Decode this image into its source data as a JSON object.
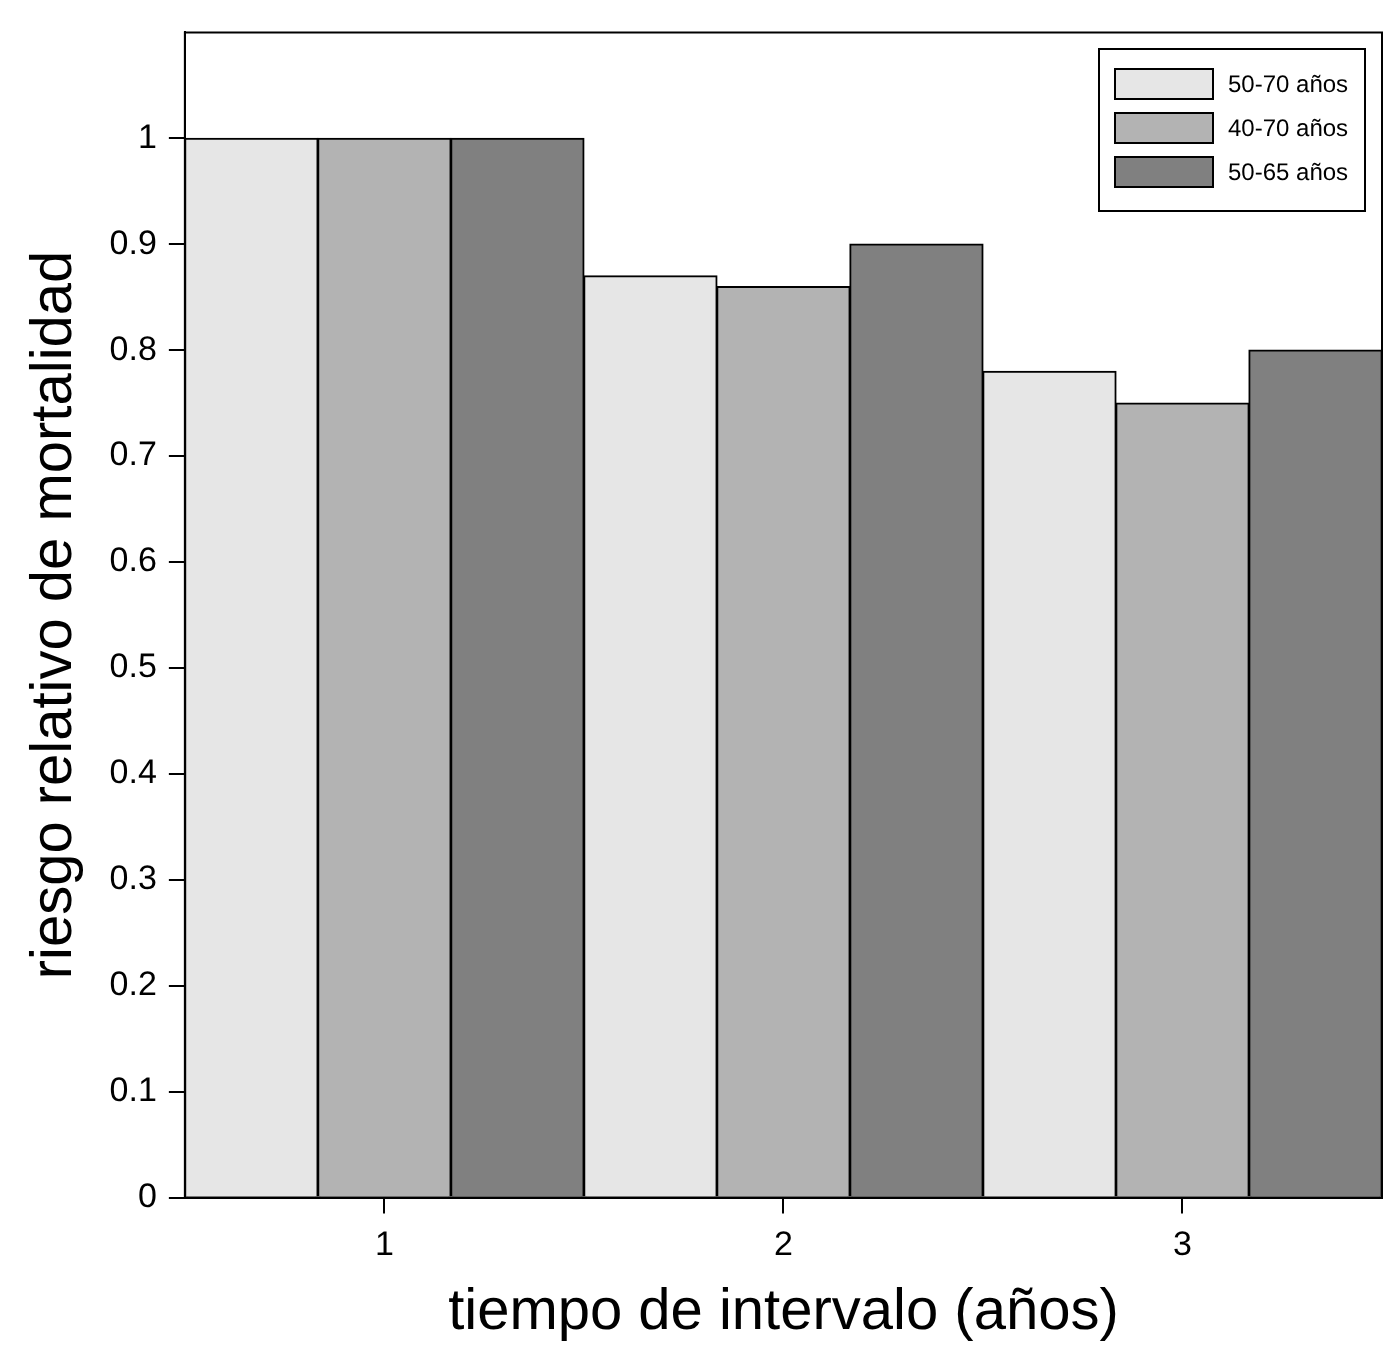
{
  "chart_data": {
    "type": "bar",
    "xlabel": "tiempo de intervalo (años)",
    "ylabel": "riesgo relativo de mortalidad",
    "categories": [
      "1",
      "2",
      "3"
    ],
    "series": [
      {
        "name": "50-70 años",
        "color": "#e6e6e6",
        "values": [
          1,
          0.87,
          0.78
        ]
      },
      {
        "name": "40-70 años",
        "color": "#b3b3b3",
        "values": [
          1,
          0.86,
          0.75
        ]
      },
      {
        "name": "50-65 años",
        "color": "#808080",
        "values": [
          1,
          0.9,
          0.8
        ]
      }
    ],
    "ylim": [
      0,
      1.1
    ],
    "yticks": [
      0,
      0.1,
      0.2,
      0.3,
      0.4,
      0.5,
      0.6,
      0.7,
      0.8,
      0.9,
      1
    ],
    "grid": false,
    "legend": "top right"
  }
}
